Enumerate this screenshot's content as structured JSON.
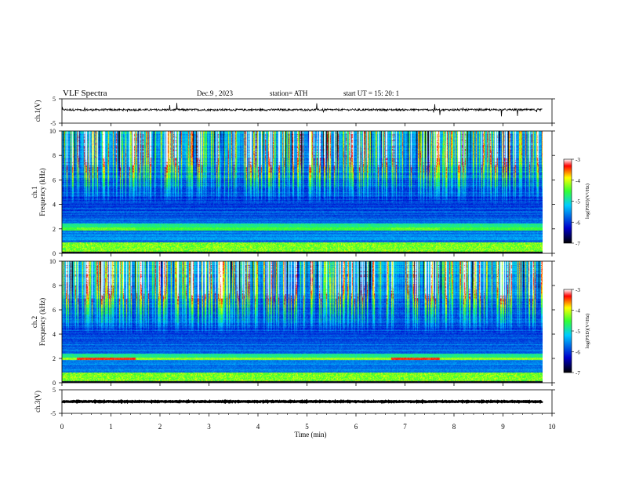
{
  "header": {
    "title": "VLF  Spectra",
    "date": "Dec.9  , 2023",
    "station": "station= ATH",
    "start_ut": "start  UT  =    15: 20: 1"
  },
  "chart_data": {
    "type": "heatmap",
    "xlabel": "Time  (min)",
    "x_ticks": [
      "0",
      "1",
      "2",
      "3",
      "4",
      "5",
      "6",
      "7",
      "8",
      "9",
      "10"
    ],
    "xlim": [
      0,
      10
    ],
    "data_end_min": 9.8,
    "panels": [
      {
        "id": "ch1-waveform",
        "type": "line",
        "ylabel": "ch.1(V)",
        "y_ticks": [
          "5",
          "-5"
        ],
        "ylim": [
          -5,
          5
        ],
        "baseline": 0.5,
        "amplitude": 0.4
      },
      {
        "id": "ch1-spectrogram",
        "type": "heatmap",
        "ylabel_top": "ch.1",
        "ylabel": "Frequency  (kHz)",
        "y_ticks": [
          "0",
          "2",
          "4",
          "6",
          "8",
          "10"
        ],
        "ylim": [
          0,
          10
        ],
        "colorbar": {
          "label": "log(PSD)(V²/Hz)",
          "ticks": [
            "-3",
            "-4",
            "-5",
            "-6",
            "-7"
          ],
          "range": [
            -7,
            -3
          ]
        }
      },
      {
        "id": "ch2-spectrogram",
        "type": "heatmap",
        "ylabel_top": "ch.2",
        "ylabel": "Frequency  (kHz)",
        "y_ticks": [
          "0",
          "2",
          "4",
          "6",
          "8",
          "10"
        ],
        "ylim": [
          0,
          10
        ],
        "colorbar": {
          "label": "log(PSD)(V²/Hz)",
          "ticks": [
            "-3",
            "-4",
            "-5",
            "-6",
            "-7"
          ],
          "range": [
            -7,
            -3
          ]
        }
      },
      {
        "id": "ch3-waveform",
        "type": "line",
        "ylabel": "ch.3(V)",
        "y_ticks": [
          "5",
          "-5"
        ],
        "ylim": [
          -5,
          5
        ],
        "baseline": 0.0,
        "amplitude": 0.15
      }
    ],
    "ch2_band_khz": 2.0,
    "colors": {
      "low": "#000000",
      "blue": "#0000cc",
      "cyan": "#00ccff",
      "green": "#33ff33",
      "yellow": "#ffff00",
      "red": "#ff0000",
      "high": "#ffffff"
    }
  }
}
